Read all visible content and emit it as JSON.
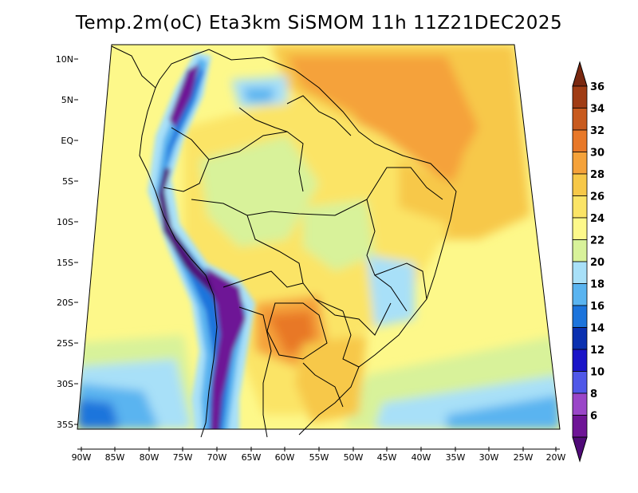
{
  "title": "Temp.2m(oC) Eta3km SiSMOM 11h 11Z21DEC2025",
  "lat_labels": [
    "10N",
    "5N",
    "EQ",
    "5S",
    "10S",
    "15S",
    "20S",
    "25S",
    "30S",
    "35S"
  ],
  "lon_labels": [
    "90W",
    "85W",
    "80W",
    "75W",
    "70W",
    "65W",
    "60W",
    "55W",
    "50W",
    "45W",
    "40W",
    "35W",
    "30W",
    "25W",
    "20W"
  ],
  "colorbar": {
    "levels": [
      "36",
      "34",
      "32",
      "30",
      "28",
      "26",
      "24",
      "22",
      "20",
      "18",
      "16",
      "14",
      "12",
      "10",
      "8",
      "6"
    ],
    "colors": [
      "#7a2810",
      "#a03c14",
      "#c85a1e",
      "#e87828",
      "#f5a23a",
      "#f7c848",
      "#fbe466",
      "#fdf88a",
      "#d8f29a",
      "#a8e0f8",
      "#5ab4f0",
      "#1c74dc",
      "#0a30b0",
      "#1a14c8",
      "#5058e8",
      "#9a46c8",
      "#6e1496",
      "#500a78"
    ]
  }
}
